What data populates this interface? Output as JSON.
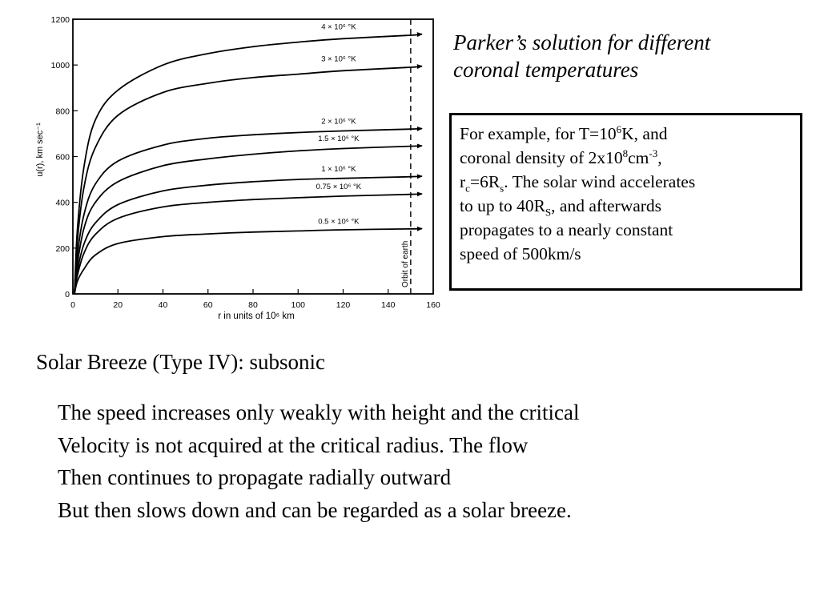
{
  "chart_data": {
    "type": "line",
    "xlabel": "r in units of 10⁶ km",
    "ylabel": "u(r), km sec⁻¹",
    "xlim": [
      0,
      160
    ],
    "ylim": [
      0,
      1200
    ],
    "x_ticks": [
      0,
      20,
      40,
      60,
      80,
      100,
      120,
      140,
      160
    ],
    "y_ticks": [
      0,
      200,
      400,
      600,
      800,
      1000,
      1200
    ],
    "annotation": "Orbit of earth",
    "annotation_x": 150,
    "series": [
      {
        "name": "4 × 10⁶ °K",
        "x": [
          0.7,
          2,
          5,
          10,
          20,
          40,
          60,
          80,
          100,
          120,
          150,
          155
        ],
        "y": [
          0,
          280,
          560,
          760,
          890,
          1000,
          1050,
          1080,
          1100,
          1115,
          1130,
          1135
        ]
      },
      {
        "name": "3 × 10⁶ °K",
        "x": [
          0.7,
          2,
          5,
          10,
          20,
          40,
          60,
          80,
          100,
          120,
          150,
          155
        ],
        "y": [
          0,
          230,
          470,
          640,
          780,
          880,
          920,
          945,
          960,
          975,
          990,
          995
        ]
      },
      {
        "name": "2 × 10⁶ °K",
        "x": [
          0.7,
          2,
          5,
          10,
          20,
          40,
          60,
          80,
          100,
          120,
          150,
          155
        ],
        "y": [
          0,
          170,
          350,
          480,
          580,
          650,
          680,
          695,
          705,
          712,
          720,
          722
        ]
      },
      {
        "name": "1.5 × 10⁶ °K",
        "x": [
          0.7,
          2,
          5,
          10,
          20,
          40,
          60,
          80,
          100,
          120,
          150,
          155
        ],
        "y": [
          0,
          130,
          290,
          400,
          490,
          560,
          590,
          610,
          625,
          635,
          645,
          647
        ]
      },
      {
        "name": "1 × 10⁶ °K",
        "x": [
          0.7,
          2,
          5,
          10,
          20,
          40,
          60,
          80,
          100,
          120,
          150,
          155
        ],
        "y": [
          0,
          100,
          220,
          310,
          390,
          450,
          475,
          490,
          500,
          505,
          512,
          514
        ]
      },
      {
        "name": "0.75 × 10⁶ °K",
        "x": [
          0.7,
          2,
          5,
          10,
          20,
          40,
          60,
          80,
          100,
          120,
          150,
          155
        ],
        "y": [
          0,
          80,
          180,
          260,
          330,
          380,
          400,
          412,
          420,
          427,
          435,
          437
        ]
      },
      {
        "name": "0.5 × 10⁶ °K",
        "x": [
          0.7,
          2,
          5,
          10,
          20,
          40,
          60,
          80,
          100,
          120,
          150,
          155
        ],
        "y": [
          0,
          55,
          110,
          170,
          220,
          250,
          262,
          270,
          275,
          280,
          284,
          285
        ]
      }
    ]
  },
  "caption": {
    "line1": "Parker’s solution for different",
    "line2": "coronal temperatures"
  },
  "info_box": {
    "p1": "For example, for T=10",
    "p1_sup": "6",
    "p2": "K, and",
    "p3": "coronal density of  2x10",
    "p3_sup": "8",
    "p4": "cm",
    "p4_sup": "-3",
    "p5": ",",
    "p6": "r",
    "p6_sub": "c",
    "p7": "=6R",
    "p7_sub": "s",
    "p8": ". The solar wind accelerates",
    "p9": "to up to 40R",
    "p9_sub": "S",
    "p10": ", and afterwards",
    "p11": "propagates to a nearly constant",
    "p12": "speed of 500km/s"
  },
  "subtitle": "Solar Breeze (Type IV): subsonic",
  "body_lines": [
    "The speed increases only weakly with height and the critical",
    "Velocity is not acquired at the critical radius. The flow",
    "Then continues to propagate radially outward",
    "But then slows down and can be regarded as a solar breeze."
  ]
}
